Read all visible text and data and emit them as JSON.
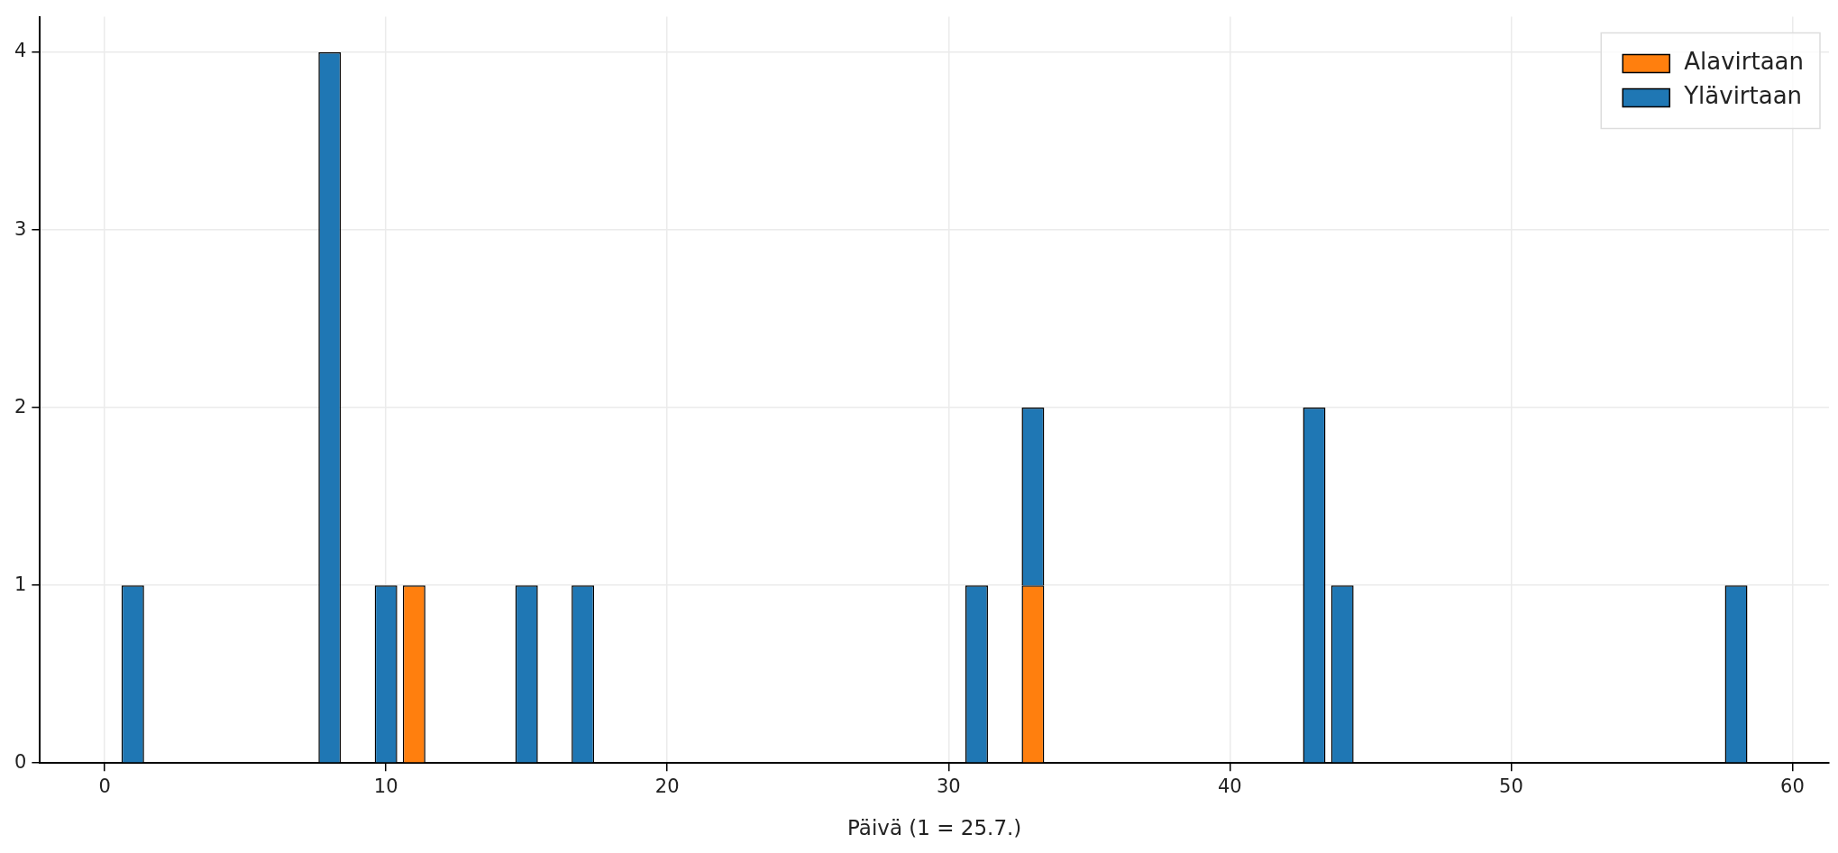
{
  "chart_data": {
    "type": "bar",
    "xlabel": "Päivä (1 = 25.7.)",
    "x": [
      1,
      8,
      10,
      11,
      15,
      17,
      31,
      33,
      43,
      44,
      58
    ],
    "series": [
      {
        "name": "Alavirtaan",
        "color": "#ff7f0e",
        "values": [
          null,
          null,
          null,
          1,
          null,
          null,
          null,
          1,
          null,
          null,
          null
        ]
      },
      {
        "name": "Ylävirtaan",
        "color": "#1f77b4",
        "values": [
          1,
          4,
          1,
          null,
          1,
          1,
          1,
          1,
          2,
          1,
          1
        ]
      }
    ],
    "stacked": true,
    "xlim": [
      -2.3,
      61.3
    ],
    "xticks": [
      0,
      10,
      20,
      30,
      40,
      50,
      60
    ],
    "ylim": [
      0,
      4.2
    ],
    "yticks": [
      0,
      1,
      2,
      3,
      4
    ],
    "grid": true,
    "legend": "top right"
  }
}
